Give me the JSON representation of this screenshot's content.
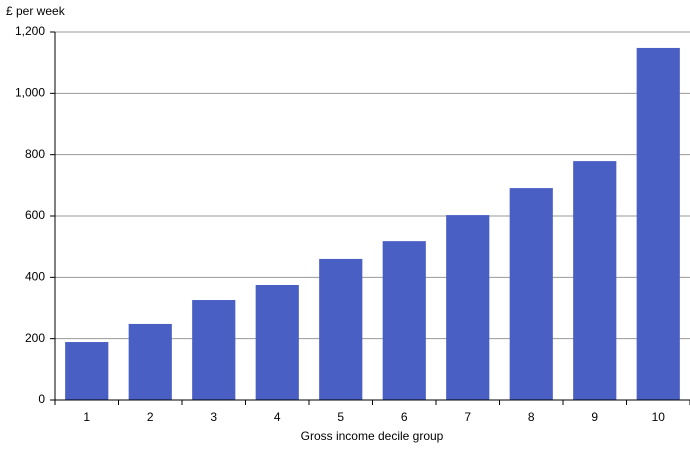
{
  "chart_data": {
    "type": "bar",
    "y_label": "£ per week",
    "x_label": "Gross income decile group",
    "categories": [
      "1",
      "2",
      "3",
      "4",
      "5",
      "6",
      "7",
      "8",
      "9",
      "10"
    ],
    "values": [
      189,
      248,
      326,
      375,
      460,
      518,
      603,
      691,
      779,
      1148
    ],
    "color": "#4a5fc4",
    "ylim": [
      0,
      1200
    ],
    "yticks": [
      0,
      200,
      400,
      600,
      800,
      {
        "value": 1000,
        "label": "1,000"
      },
      {
        "value": 1200,
        "label": "1,200"
      }
    ],
    "grid": true
  }
}
